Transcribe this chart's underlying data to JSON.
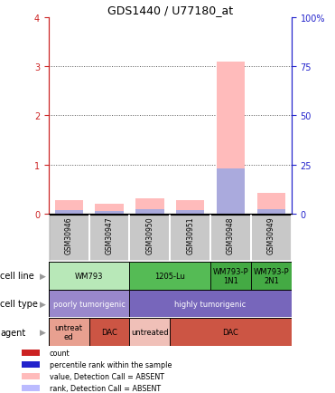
{
  "title": "GDS1440 / U77180_at",
  "samples": [
    "GSM30946",
    "GSM30947",
    "GSM30950",
    "GSM30951",
    "GSM30948",
    "GSM30949"
  ],
  "bar_values_pink": [
    0.28,
    0.2,
    0.32,
    0.28,
    3.1,
    0.42
  ],
  "bar_values_blue": [
    0.08,
    0.06,
    0.09,
    0.08,
    0.92,
    0.1
  ],
  "ylim_left": [
    0,
    4
  ],
  "ylim_right": [
    0,
    100
  ],
  "yticks_left": [
    0,
    1,
    2,
    3,
    4
  ],
  "ytick_labels_right": [
    "0",
    "25",
    "50",
    "75",
    "100%"
  ],
  "cell_line_groups": [
    {
      "label": "WM793",
      "start": 0,
      "end": 2,
      "color": "#b8e8b8"
    },
    {
      "label": "1205-Lu",
      "start": 2,
      "end": 4,
      "color": "#55bb55"
    },
    {
      "label": "WM793-P\n1N1",
      "start": 4,
      "end": 5,
      "color": "#44aa44"
    },
    {
      "label": "WM793-P\n2N1",
      "start": 5,
      "end": 6,
      "color": "#44aa44"
    }
  ],
  "cell_type_groups": [
    {
      "label": "poorly tumorigenic",
      "start": 0,
      "end": 2,
      "color": "#9988cc"
    },
    {
      "label": "highly tumorigenic",
      "start": 2,
      "end": 6,
      "color": "#7766bb"
    }
  ],
  "agent_groups": [
    {
      "label": "untreat\ned",
      "start": 0,
      "end": 1,
      "color": "#e8a090"
    },
    {
      "label": "DAC",
      "start": 1,
      "end": 2,
      "color": "#cc5544"
    },
    {
      "label": "untreated",
      "start": 2,
      "end": 3,
      "color": "#f0c0b8"
    },
    {
      "label": "DAC",
      "start": 3,
      "end": 6,
      "color": "#cc5544"
    }
  ],
  "legend_items": [
    {
      "label": "count",
      "color": "#cc2222"
    },
    {
      "label": "percentile rank within the sample",
      "color": "#2222cc"
    },
    {
      "label": "value, Detection Call = ABSENT",
      "color": "#ffbbbb"
    },
    {
      "label": "rank, Detection Call = ABSENT",
      "color": "#bbbbff"
    }
  ],
  "left_axis_color": "#cc2222",
  "right_axis_color": "#2222cc",
  "bar_color_pink": "#ffbbbb",
  "bar_color_blue": "#aaaadd",
  "sample_box_color": "#c8c8c8",
  "grid_color": "#555555",
  "bar_width": 0.7,
  "row_label_fontsize": 7,
  "sample_fontsize": 5.5,
  "annotation_fontsize": 6,
  "title_fontsize": 9
}
